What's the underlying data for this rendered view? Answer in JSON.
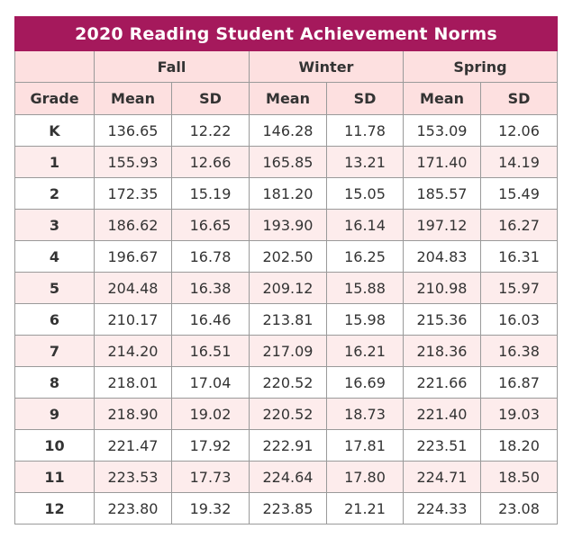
{
  "title": "2020 Reading Student Achievement Norms",
  "seasons": [
    "Fall",
    "Winter",
    "Spring"
  ],
  "columns": {
    "grade": "Grade",
    "mean": "Mean",
    "sd": "SD"
  },
  "rows": [
    {
      "grade": "K",
      "fall_mean": "136.65",
      "fall_sd": "12.22",
      "winter_mean": "146.28",
      "winter_sd": "11.78",
      "spring_mean": "153.09",
      "spring_sd": "12.06"
    },
    {
      "grade": "1",
      "fall_mean": "155.93",
      "fall_sd": "12.66",
      "winter_mean": "165.85",
      "winter_sd": "13.21",
      "spring_mean": "171.40",
      "spring_sd": "14.19"
    },
    {
      "grade": "2",
      "fall_mean": "172.35",
      "fall_sd": "15.19",
      "winter_mean": "181.20",
      "winter_sd": "15.05",
      "spring_mean": "185.57",
      "spring_sd": "15.49"
    },
    {
      "grade": "3",
      "fall_mean": "186.62",
      "fall_sd": "16.65",
      "winter_mean": "193.90",
      "winter_sd": "16.14",
      "spring_mean": "197.12",
      "spring_sd": "16.27"
    },
    {
      "grade": "4",
      "fall_mean": "196.67",
      "fall_sd": "16.78",
      "winter_mean": "202.50",
      "winter_sd": "16.25",
      "spring_mean": "204.83",
      "spring_sd": "16.31"
    },
    {
      "grade": "5",
      "fall_mean": "204.48",
      "fall_sd": "16.38",
      "winter_mean": "209.12",
      "winter_sd": "15.88",
      "spring_mean": "210.98",
      "spring_sd": "15.97"
    },
    {
      "grade": "6",
      "fall_mean": "210.17",
      "fall_sd": "16.46",
      "winter_mean": "213.81",
      "winter_sd": "15.98",
      "spring_mean": "215.36",
      "spring_sd": "16.03"
    },
    {
      "grade": "7",
      "fall_mean": "214.20",
      "fall_sd": "16.51",
      "winter_mean": "217.09",
      "winter_sd": "16.21",
      "spring_mean": "218.36",
      "spring_sd": "16.38"
    },
    {
      "grade": "8",
      "fall_mean": "218.01",
      "fall_sd": "17.04",
      "winter_mean": "220.52",
      "winter_sd": "16.69",
      "spring_mean": "221.66",
      "spring_sd": "16.87"
    },
    {
      "grade": "9",
      "fall_mean": "218.90",
      "fall_sd": "19.02",
      "winter_mean": "220.52",
      "winter_sd": "18.73",
      "spring_mean": "221.40",
      "spring_sd": "19.03"
    },
    {
      "grade": "10",
      "fall_mean": "221.47",
      "fall_sd": "17.92",
      "winter_mean": "222.91",
      "winter_sd": "17.81",
      "spring_mean": "223.51",
      "spring_sd": "18.20"
    },
    {
      "grade": "11",
      "fall_mean": "223.53",
      "fall_sd": "17.73",
      "winter_mean": "224.64",
      "winter_sd": "17.80",
      "spring_mean": "224.71",
      "spring_sd": "18.50"
    },
    {
      "grade": "12",
      "fall_mean": "223.80",
      "fall_sd": "19.32",
      "winter_mean": "223.85",
      "winter_sd": "21.21",
      "spring_mean": "224.33",
      "spring_sd": "23.08"
    }
  ],
  "colors": {
    "title_bg": "#a5195c",
    "header_bg": "#fde0e0",
    "stripe_bg": "#fdecec",
    "border": "#9a9a9a"
  }
}
